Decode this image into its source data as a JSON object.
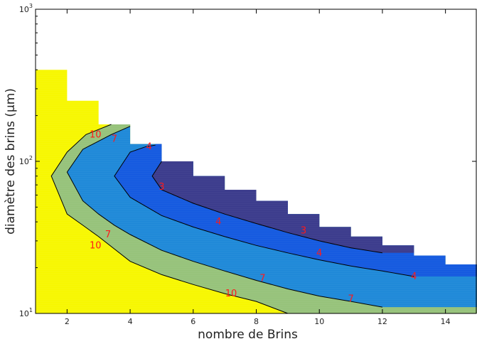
{
  "chart_data": {
    "type": "area",
    "xlabel": "nombre de Brins",
    "ylabel": "diamètre des brins (μm)",
    "xlim": [
      1,
      15
    ],
    "ylim": [
      10,
      1000
    ],
    "yscale": "log",
    "x_ticks": [
      2,
      4,
      6,
      8,
      10,
      12,
      14
    ],
    "x_tick_labels": [
      "2",
      "4",
      "6",
      "8",
      "10",
      "12",
      "14"
    ],
    "y_ticks": [
      10,
      100,
      1000
    ],
    "y_tick_labels": [
      {
        "base": "10",
        "exp": "1"
      },
      {
        "base": "10",
        "exp": "2"
      },
      {
        "base": "10",
        "exp": "3"
      }
    ],
    "grid": false,
    "colors": {
      "level_10_plus": "#f7f700",
      "level_7": "#96c27a",
      "level_4": "#1e88d8",
      "level_3": "#1459e0",
      "level_2": "#3b3b8c",
      "contour_line": "#000000",
      "contour_label": "#ff1a1a"
    },
    "domain_upper_steps": [
      {
        "x": [
          1,
          2
        ],
        "y": 400
      },
      {
        "x": [
          2,
          3
        ],
        "y": 250
      },
      {
        "x": [
          3,
          4
        ],
        "y": 175
      },
      {
        "x": [
          4,
          5
        ],
        "y": 130
      },
      {
        "x": [
          5,
          6
        ],
        "y": 100
      },
      {
        "x": [
          6,
          7
        ],
        "y": 80
      },
      {
        "x": [
          7,
          8
        ],
        "y": 65
      },
      {
        "x": [
          8,
          9
        ],
        "y": 55
      },
      {
        "x": [
          9,
          10
        ],
        "y": 45
      },
      {
        "x": [
          10,
          11
        ],
        "y": 37
      },
      {
        "x": [
          11,
          12
        ],
        "y": 32
      },
      {
        "x": [
          12,
          13
        ],
        "y": 28
      },
      {
        "x": [
          13,
          14
        ],
        "y": 24
      },
      {
        "x": [
          14,
          15
        ],
        "y": 21
      }
    ],
    "contours": [
      {
        "level": 10,
        "label": "10",
        "upper": [
          [
            2.6,
            150
          ],
          [
            3.4,
            175
          ]
        ],
        "nose": [
          [
            2,
            115
          ],
          [
            1.5,
            80
          ],
          [
            2,
            45
          ]
        ],
        "lower": [
          [
            2,
            45
          ],
          [
            2.5,
            38
          ],
          [
            3,
            32
          ],
          [
            4,
            22
          ],
          [
            5,
            18
          ],
          [
            6,
            15.5
          ],
          [
            7,
            13.5
          ],
          [
            8,
            12
          ],
          [
            9,
            10
          ]
        ]
      },
      {
        "level": 7,
        "label": "7",
        "upper": [
          [
            3.4,
            150
          ],
          [
            4,
            170
          ]
        ],
        "nose": [
          [
            2.5,
            120
          ],
          [
            2,
            85
          ],
          [
            2.5,
            55
          ]
        ],
        "lower": [
          [
            2.5,
            55
          ],
          [
            3,
            45
          ],
          [
            3.5,
            38
          ],
          [
            4,
            33
          ],
          [
            5,
            26
          ],
          [
            6,
            22
          ],
          [
            7,
            19
          ],
          [
            8,
            16.5
          ],
          [
            9,
            14.5
          ],
          [
            10,
            13
          ],
          [
            11,
            12
          ],
          [
            12,
            11
          ]
        ]
      },
      {
        "level": 4,
        "label": "4",
        "upper": [
          [
            4.5,
            125
          ],
          [
            4.8,
            128
          ]
        ],
        "nose": [
          [
            4,
            115
          ],
          [
            3.5,
            80
          ],
          [
            4,
            58
          ]
        ],
        "lower": [
          [
            4,
            58
          ],
          [
            5,
            44
          ],
          [
            6,
            37
          ],
          [
            7,
            32
          ],
          [
            8,
            28
          ],
          [
            9,
            25
          ],
          [
            10,
            22.5
          ],
          [
            11,
            20.5
          ],
          [
            12,
            19
          ],
          [
            13,
            17.5
          ]
        ]
      },
      {
        "level": 3,
        "label": "3",
        "upper": [],
        "nose": [
          [
            5,
            100
          ],
          [
            4.7,
            80
          ],
          [
            5,
            65
          ]
        ],
        "lower": [
          [
            5,
            65
          ],
          [
            6,
            53
          ],
          [
            7,
            45
          ],
          [
            8,
            39
          ],
          [
            9,
            34
          ],
          [
            10,
            30
          ],
          [
            11,
            27
          ],
          [
            12,
            25
          ]
        ]
      }
    ],
    "contour_labels": [
      {
        "text": "10",
        "x": 2.9,
        "y": 150
      },
      {
        "text": "7",
        "x": 3.5,
        "y": 140
      },
      {
        "text": "4",
        "x": 4.6,
        "y": 125
      },
      {
        "text": "3",
        "x": 5.0,
        "y": 68
      },
      {
        "text": "7",
        "x": 3.3,
        "y": 33
      },
      {
        "text": "10",
        "x": 2.9,
        "y": 28
      },
      {
        "text": "4",
        "x": 6.8,
        "y": 40
      },
      {
        "text": "3",
        "x": 9.5,
        "y": 35
      },
      {
        "text": "4",
        "x": 10.0,
        "y": 25
      },
      {
        "text": "7",
        "x": 8.2,
        "y": 17
      },
      {
        "text": "10",
        "x": 7.2,
        "y": 13.5
      },
      {
        "text": "4",
        "x": 13.0,
        "y": 17.5
      },
      {
        "text": "7",
        "x": 11.0,
        "y": 12.5
      }
    ]
  }
}
